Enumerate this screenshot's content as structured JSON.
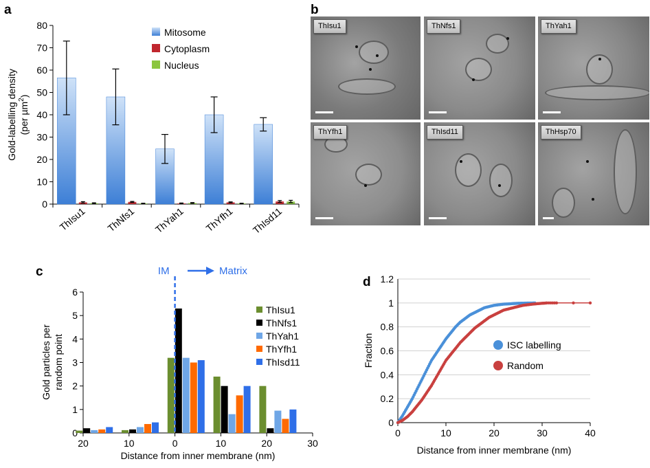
{
  "panels": {
    "a": "a",
    "b": "b",
    "c": "c",
    "d": "d"
  },
  "chart_data": [
    {
      "panel": "a",
      "type": "bar",
      "categories": [
        "ThIsu1",
        "ThNfs1",
        "ThYah1",
        "ThYfh1",
        "ThIsd11"
      ],
      "series": [
        {
          "name": "Mitosome",
          "values": [
            56.5,
            48,
            24.7,
            40,
            35.7
          ],
          "errors": [
            16.5,
            12.5,
            6.5,
            8,
            3
          ],
          "color": "#6fa6e6"
        },
        {
          "name": "Cytoplasm",
          "values": [
            0.8,
            1.0,
            0.3,
            0.8,
            1.2
          ],
          "errors": [
            0.3,
            0.2,
            0.2,
            0.2,
            0.4
          ],
          "color": "#c0262e"
        },
        {
          "name": "Nucleus",
          "values": [
            0.4,
            0.3,
            0.5,
            0.3,
            1.2
          ],
          "errors": [
            0.2,
            0.1,
            0.2,
            0.1,
            0.5
          ],
          "color": "#8cc63f"
        }
      ],
      "ylabel_line1": "Gold-labelling density",
      "ylabel_line2": "(per µm",
      "ylabel_sup": "2",
      "ylabel_close": ")",
      "ylim": [
        0,
        80
      ],
      "yticks": [
        "0",
        "10",
        "20",
        "30",
        "40",
        "50",
        "60",
        "70",
        "80"
      ],
      "legend_position": "top-right"
    },
    {
      "panel": "c",
      "type": "bar",
      "series": [
        {
          "name": "ThIsu1",
          "color": "#6b8e2f"
        },
        {
          "name": "ThNfs1",
          "color": "#000000"
        },
        {
          "name": "ThYah1",
          "color": "#6fa6e6"
        },
        {
          "name": "ThYfh1",
          "color": "#ff6a00"
        },
        {
          "name": "ThIsd11",
          "color": "#2f6fe8"
        }
      ],
      "groups": [
        {
          "distance": 17.5,
          "values": [
            0.1,
            0.2,
            0.12,
            0.15,
            0.25
          ]
        },
        {
          "distance": 7.5,
          "values": [
            0.12,
            0.15,
            0.25,
            0.38,
            0.45
          ]
        },
        {
          "distance": -2.5,
          "values": [
            3.2,
            5.3,
            3.2,
            3.0,
            3.1
          ]
        },
        {
          "distance": -12.5,
          "values": [
            2.4,
            2.0,
            0.8,
            1.6,
            2.0
          ]
        },
        {
          "distance": -22.5,
          "values": [
            2.0,
            0.2,
            0.95,
            0.6,
            1.0
          ]
        }
      ],
      "annotation_left": "IM",
      "annotation_right": "Matrix",
      "xlabel": "Distance from inner membrane (nm)",
      "ylabel_line1": "Gold particles per",
      "ylabel_line2": "random point",
      "xticks": [
        {
          "value": 20,
          "label": "20"
        },
        {
          "value": 10,
          "label": "10"
        },
        {
          "value": 0,
          "label": "0"
        },
        {
          "value": -10,
          "label": "10"
        },
        {
          "value": -20,
          "label": "20"
        },
        {
          "value": -30,
          "label": "30"
        }
      ],
      "xlim": [
        20,
        -30
      ],
      "ylim": [
        0,
        6
      ],
      "yticks": [
        "0",
        "1",
        "2",
        "3",
        "4",
        "5",
        "6"
      ],
      "legend_position": "right"
    },
    {
      "panel": "d",
      "type": "line",
      "series": [
        {
          "name": "ISC labelling",
          "color": "#4a90d9",
          "x": [
            0,
            1,
            2,
            3,
            4,
            5,
            6,
            7,
            8,
            9,
            10,
            11,
            12,
            13,
            14,
            15,
            16,
            17,
            18,
            19,
            20,
            21,
            22,
            23,
            24,
            25,
            26,
            27,
            28.5
          ],
          "y": [
            0,
            0.06,
            0.13,
            0.2,
            0.28,
            0.36,
            0.44,
            0.52,
            0.58,
            0.64,
            0.7,
            0.75,
            0.8,
            0.84,
            0.87,
            0.9,
            0.92,
            0.94,
            0.96,
            0.97,
            0.98,
            0.985,
            0.99,
            0.992,
            0.995,
            0.997,
            0.998,
            0.999,
            1.0
          ]
        },
        {
          "name": "Random",
          "color": "#c9403f",
          "x": [
            0,
            1,
            2,
            3,
            4,
            5,
            6,
            7,
            8,
            9,
            10,
            11,
            12,
            13,
            14,
            15,
            16,
            17,
            18,
            19,
            20,
            21,
            22,
            23,
            24,
            25,
            26,
            27,
            28,
            29,
            30,
            31,
            33,
            40
          ],
          "y": [
            0,
            0.02,
            0.05,
            0.09,
            0.14,
            0.19,
            0.25,
            0.31,
            0.38,
            0.45,
            0.52,
            0.57,
            0.62,
            0.67,
            0.71,
            0.75,
            0.79,
            0.82,
            0.85,
            0.88,
            0.9,
            0.92,
            0.94,
            0.95,
            0.96,
            0.97,
            0.98,
            0.985,
            0.99,
            0.994,
            0.997,
            1.0,
            1.0,
            1.0
          ]
        }
      ],
      "xlabel": "Distance from inner membrane (nm)",
      "ylabel": "Fraction",
      "xlim": [
        0,
        40
      ],
      "ylim": [
        0,
        1.2
      ],
      "xticks": [
        "0",
        "10",
        "20",
        "30",
        "40"
      ],
      "yticks": [
        "0",
        "0.2",
        "0.4",
        "0.6",
        "0.8",
        "1",
        "1.2"
      ],
      "legend_position": "center-right"
    }
  ],
  "micrographs": {
    "tiles": [
      {
        "label": "ThIsu1",
        "tone": "#7b7b7b"
      },
      {
        "label": "ThNfs1",
        "tone": "#8a8a8a"
      },
      {
        "label": "ThYah1",
        "tone": "#868686"
      },
      {
        "label": "ThYfh1",
        "tone": "#8d8d8d"
      },
      {
        "label": "ThIsd11",
        "tone": "#8a8a8a"
      },
      {
        "label": "ThHsp70",
        "tone": "#838383"
      }
    ]
  }
}
